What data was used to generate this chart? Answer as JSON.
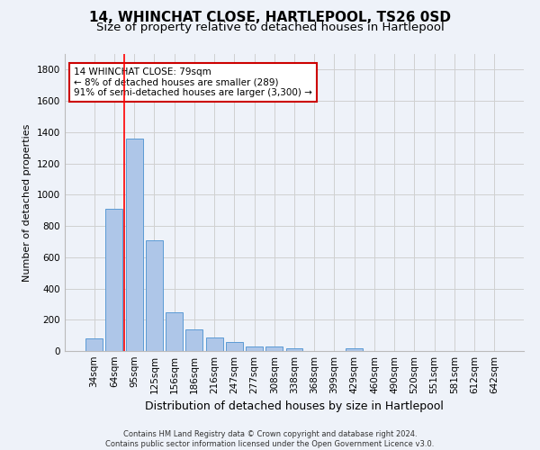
{
  "title": "14, WHINCHAT CLOSE, HARTLEPOOL, TS26 0SD",
  "subtitle": "Size of property relative to detached houses in Hartlepool",
  "xlabel": "Distribution of detached houses by size in Hartlepool",
  "ylabel": "Number of detached properties",
  "categories": [
    "34sqm",
    "64sqm",
    "95sqm",
    "125sqm",
    "156sqm",
    "186sqm",
    "216sqm",
    "247sqm",
    "277sqm",
    "308sqm",
    "338sqm",
    "368sqm",
    "399sqm",
    "429sqm",
    "460sqm",
    "490sqm",
    "520sqm",
    "551sqm",
    "581sqm",
    "612sqm",
    "642sqm"
  ],
  "values": [
    80,
    910,
    1360,
    710,
    250,
    140,
    85,
    55,
    30,
    30,
    20,
    0,
    0,
    20,
    0,
    0,
    0,
    0,
    0,
    0,
    0
  ],
  "bar_color": "#aec6e8",
  "bar_edge_color": "#5b9bd5",
  "grid_color": "#d0d0d0",
  "background_color": "#eef2f9",
  "red_line_x": 1.48,
  "annotation_text": "14 WHINCHAT CLOSE: 79sqm\n← 8% of detached houses are smaller (289)\n91% of semi-detached houses are larger (3,300) →",
  "annotation_box_color": "#ffffff",
  "annotation_border_color": "#cc0000",
  "ylim": [
    0,
    1900
  ],
  "yticks": [
    0,
    200,
    400,
    600,
    800,
    1000,
    1200,
    1400,
    1600,
    1800
  ],
  "footer": "Contains HM Land Registry data © Crown copyright and database right 2024.\nContains public sector information licensed under the Open Government Licence v3.0.",
  "title_fontsize": 11,
  "subtitle_fontsize": 9.5,
  "xlabel_fontsize": 9,
  "ylabel_fontsize": 8,
  "tick_fontsize": 7.5,
  "footer_fontsize": 6,
  "annot_fontsize": 7.5
}
